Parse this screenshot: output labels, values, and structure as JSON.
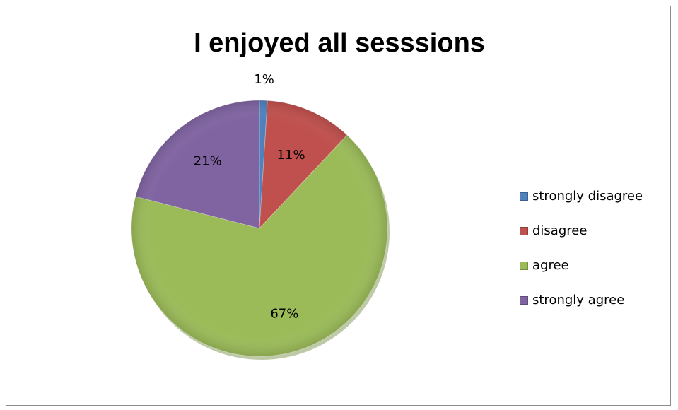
{
  "chart_data": {
    "type": "pie",
    "title": "I enjoyed all sesssions",
    "categories": [
      "strongly disagree",
      "disagree",
      "agree",
      "strongly agree"
    ],
    "values": [
      1,
      11,
      67,
      21
    ],
    "data_labels": [
      "1%",
      "11%",
      "67%",
      "21%"
    ],
    "colors": [
      "#4f81bd",
      "#c0504d",
      "#9bbb59",
      "#8064a2"
    ],
    "legend_position": "right"
  }
}
